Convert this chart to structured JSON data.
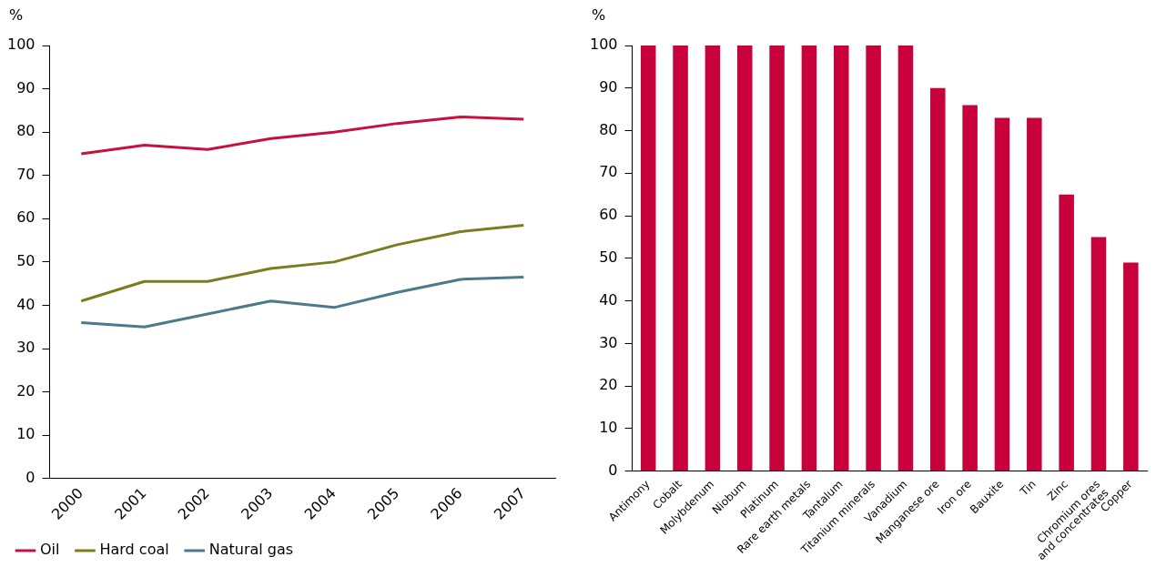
{
  "chart_data": [
    {
      "type": "line",
      "ylabel": "%",
      "categories": [
        "2000",
        "2001",
        "2002",
        "2003",
        "2004",
        "2005",
        "2006",
        "2007"
      ],
      "series": [
        {
          "name": "Oil",
          "color": "#c8103e",
          "values": [
            75,
            77,
            76,
            78.5,
            80,
            82,
            83.5,
            83
          ]
        },
        {
          "name": "Hard coal",
          "color": "#7a7d1e",
          "values": [
            41,
            45.5,
            45.5,
            48.5,
            50,
            54,
            57,
            58.5
          ]
        },
        {
          "name": "Natural gas",
          "color": "#4a7a8c",
          "values": [
            36,
            35,
            38,
            41,
            39.5,
            43,
            46,
            46.5
          ]
        }
      ],
      "ylim": [
        0,
        100
      ],
      "yticks": [
        0,
        10,
        20,
        30,
        40,
        50,
        60,
        70,
        80,
        90,
        100
      ],
      "grid": false,
      "legend": "bottom",
      "marker": "none",
      "line_style": "solid"
    },
    {
      "type": "bar",
      "ylabel": "%",
      "categories": [
        "Antimony",
        "Cobalt",
        "Molybdenum",
        "Niobum",
        "Platinum",
        "Rare earth metals",
        "Tantalum",
        "Titanium minerals",
        "Vanadium",
        "Manganese ore",
        "Iron ore",
        "Bauxite",
        "Tin",
        "Zinc",
        "Chromium ores\nand concentrates",
        "Copper"
      ],
      "values": [
        100,
        100,
        100,
        100,
        100,
        100,
        100,
        100,
        100,
        90,
        86,
        83,
        83,
        65,
        55,
        49
      ],
      "color": "#c8003c",
      "ylim": [
        0,
        100
      ],
      "yticks": [
        0,
        10,
        20,
        30,
        40,
        50,
        60,
        70,
        80,
        90,
        100
      ],
      "grid": false
    }
  ]
}
